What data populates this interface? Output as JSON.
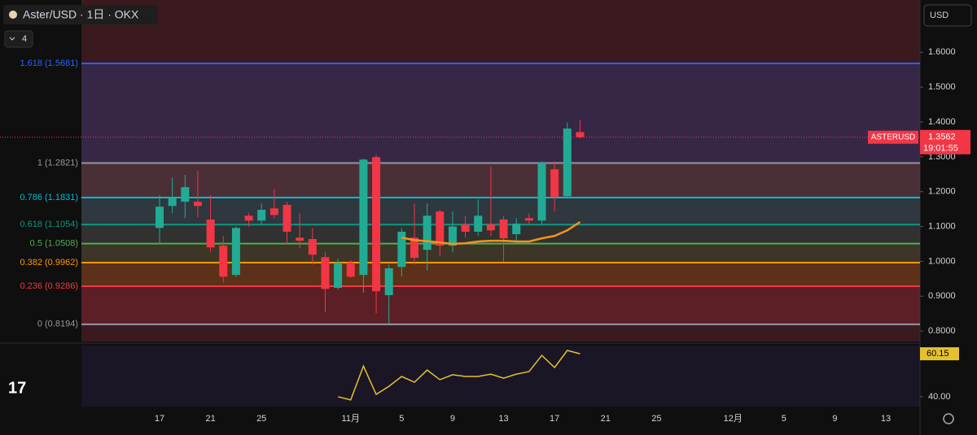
{
  "header": {
    "title": "Aster/USD · 1日 · OKX",
    "indicators": "4",
    "currency": "USD"
  },
  "chart_data": {
    "type": "candlestick",
    "categories": [
      "17",
      null,
      null,
      null,
      "21",
      null,
      null,
      null,
      "25",
      null,
      null,
      null,
      null,
      null,
      null,
      "11月",
      null,
      null,
      null,
      "5",
      null,
      null,
      null,
      "9",
      null,
      null,
      null,
      "13",
      null,
      null,
      null,
      "17",
      null,
      null,
      null,
      "21",
      null,
      null,
      null,
      "25",
      null,
      null,
      null,
      null,
      null,
      "12月",
      null,
      null,
      null,
      "5",
      null,
      null,
      null,
      "9",
      null,
      null,
      null,
      "13",
      null,
      null
    ],
    "open": [
      1.096,
      1.159,
      1.171,
      1.171,
      1.12,
      1.045,
      0.961,
      1.131,
      1.117,
      1.152,
      1.162,
      1.068,
      1.064,
      1.012,
      0.924,
      0.996,
      0.961,
      1.299,
      0.903,
      0.984,
      1.068,
      1.033,
      1.143,
      1.045,
      1.106,
      1.085,
      1.106,
      1.12,
      1.078,
      1.124,
      1.117,
      1.264,
      1.187,
      1.371,
      null,
      null,
      null,
      null,
      null,
      null,
      null,
      null,
      null,
      null,
      null,
      null,
      null,
      null,
      null,
      null,
      null,
      null,
      null,
      null,
      null,
      null,
      null,
      null,
      null,
      null
    ],
    "high": [
      1.19,
      1.24,
      1.248,
      1.26,
      1.19,
      1.073,
      1.1,
      1.138,
      1.166,
      1.208,
      1.171,
      1.138,
      1.096,
      1.026,
      1.008,
      1.003,
      1.295,
      1.306,
      0.991,
      1.096,
      1.166,
      1.166,
      1.148,
      1.143,
      1.131,
      1.178,
      1.271,
      1.131,
      1.124,
      1.138,
      1.287,
      1.287,
      1.399,
      1.406,
      null,
      null,
      null,
      null,
      null,
      null,
      null,
      null,
      null,
      null,
      null,
      null,
      null,
      null,
      null,
      null,
      null,
      null,
      null,
      null,
      null,
      null,
      null,
      null,
      null,
      null
    ],
    "low": [
      1.05,
      1.138,
      1.124,
      1.127,
      1.026,
      0.938,
      0.956,
      1.1,
      1.108,
      1.124,
      1.05,
      1.038,
      0.991,
      0.854,
      0.919,
      0.952,
      0.91,
      0.851,
      0.821,
      0.956,
      0.991,
      0.973,
      1.015,
      1.026,
      1.068,
      1.073,
      1.073,
      0.998,
      1.054,
      1.108,
      1.108,
      1.143,
      1.182,
      1.353,
      null,
      null,
      null,
      null,
      null,
      null,
      null,
      null,
      null,
      null,
      null,
      null,
      null,
      null,
      null,
      null,
      null,
      null,
      null,
      null,
      null,
      null,
      null,
      null,
      null,
      null
    ],
    "close": [
      1.157,
      1.182,
      1.213,
      1.159,
      1.04,
      0.956,
      1.096,
      1.117,
      1.148,
      1.133,
      1.085,
      1.059,
      1.019,
      0.921,
      0.996,
      0.956,
      1.292,
      0.914,
      0.98,
      1.085,
      1.01,
      1.131,
      1.045,
      1.1,
      1.085,
      1.131,
      1.089,
      1.066,
      1.108,
      1.117,
      1.283,
      1.185,
      1.381,
      1.3562,
      null,
      null,
      null,
      null,
      null,
      null,
      null,
      null,
      null,
      null,
      null,
      null,
      null,
      null,
      null,
      null,
      null,
      null,
      null,
      null,
      null,
      null,
      null,
      null,
      null,
      null
    ],
    "up_color": "#22ab94",
    "down_color": "#f23645",
    "ylim": [
      0.77,
      1.75
    ],
    "yticks": [
      {
        "value": 0.8,
        "label": "0.8000"
      },
      {
        "value": 0.9,
        "label": "0.9000"
      },
      {
        "value": 1.0,
        "label": "1.0000"
      },
      {
        "value": 1.1,
        "label": "1.1000"
      },
      {
        "value": 1.2,
        "label": "1.2000"
      },
      {
        "value": 1.3,
        "label": "1.3000"
      },
      {
        "value": 1.4,
        "label": "1.4000"
      },
      {
        "value": 1.5,
        "label": "1.5000"
      },
      {
        "value": 1.6,
        "label": "1.6000"
      }
    ],
    "symbol": "ASTERUSD",
    "countdown": "19:01:55",
    "fib_levels": [
      {
        "label": "1.618 (1.5681)",
        "value": 1.5681,
        "color": "#2962ff"
      },
      {
        "label": "1 (1.2821)",
        "value": 1.2821,
        "color": "#9598a1"
      },
      {
        "label": "0.786 (1.1831)",
        "value": 1.1831,
        "color": "#00bcd4"
      },
      {
        "label": "0.618 (1.1054)",
        "value": 1.1054,
        "color": "#089981"
      },
      {
        "label": "0.5 (1.0508)",
        "value": 1.0508,
        "color": "#4caf50"
      },
      {
        "label": "0.382 (0.9962)",
        "value": 0.9962,
        "color": "#ff9800"
      },
      {
        "label": "0.236 (0.9286)",
        "value": 0.9286,
        "color": "#f23645"
      },
      {
        "label": "0 (0.8194)",
        "value": 0.8194,
        "color": "#9598a1"
      }
    ],
    "ma": {
      "color": "#f7931a",
      "values": [
        null,
        null,
        null,
        null,
        null,
        null,
        null,
        null,
        null,
        null,
        null,
        null,
        null,
        null,
        null,
        null,
        null,
        null,
        null,
        1.068,
        1.061,
        1.058,
        1.054,
        1.05,
        1.052,
        1.057,
        1.059,
        1.059,
        1.057,
        1.057,
        1.066,
        1.073,
        1.089,
        1.113,
        null,
        null,
        null,
        null,
        null,
        null,
        null,
        null,
        null,
        null,
        null,
        null,
        null,
        null,
        null,
        null,
        null,
        null,
        null,
        null,
        null,
        null,
        null,
        null,
        null,
        null
      ]
    },
    "rsi": {
      "color": "#e5c12e",
      "ylim": [
        35.4,
        64
      ],
      "yticks": [
        {
          "value": 40,
          "label": "40.00"
        }
      ],
      "values": [
        null,
        null,
        null,
        null,
        null,
        null,
        null,
        null,
        null,
        null,
        null,
        null,
        null,
        null,
        40,
        38.5,
        54.4,
        41.1,
        44.9,
        49.5,
        46.8,
        52.5,
        48.0,
        50.3,
        49.5,
        49.5,
        50.6,
        48.7,
        50.6,
        51.8,
        59.4,
        53.7,
        61.7,
        60.15,
        null,
        null,
        null,
        null,
        null,
        null,
        null,
        null,
        null,
        null,
        null,
        null,
        null,
        null,
        null,
        null,
        null,
        null,
        null,
        null,
        null,
        null,
        null,
        null,
        null,
        null
      ]
    }
  }
}
